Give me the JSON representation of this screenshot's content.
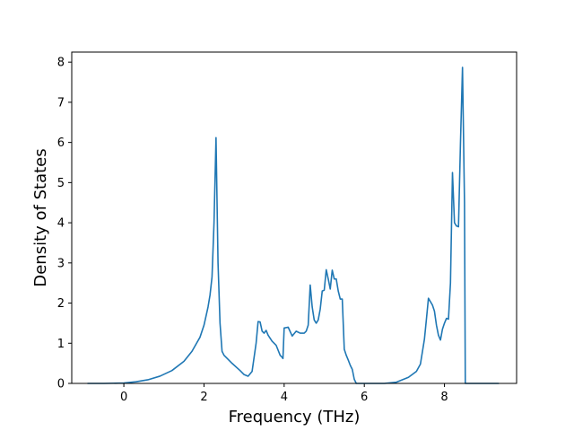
{
  "chart_data": {
    "type": "line",
    "xlabel": "Frequency (THz)",
    "ylabel": "Density of States",
    "xlim": [
      -1.3,
      9.8
    ],
    "ylim": [
      0,
      8.25
    ],
    "x_ticks": [
      0,
      2,
      4,
      6,
      8
    ],
    "y_ticks": [
      0,
      1,
      2,
      3,
      4,
      5,
      6,
      7,
      8
    ],
    "grid": false,
    "line_color": "#1f77b4",
    "series": [
      {
        "x": [
          -0.9,
          -0.5,
          0.0,
          0.3,
          0.6,
          0.9,
          1.2,
          1.5,
          1.7,
          1.9,
          2.0,
          2.1,
          2.15,
          2.2,
          2.25,
          2.3,
          2.35,
          2.4,
          2.45,
          2.5,
          2.7,
          2.9,
          3.0,
          3.1,
          3.2,
          3.3,
          3.35,
          3.4,
          3.45,
          3.5,
          3.55,
          3.6,
          3.7,
          3.8,
          3.9,
          3.95,
          3.97,
          4.0,
          4.1,
          4.2,
          4.3,
          4.4,
          4.5,
          4.55,
          4.6,
          4.65,
          4.7,
          4.75,
          4.8,
          4.85,
          4.9,
          4.95,
          5.0,
          5.05,
          5.1,
          5.15,
          5.2,
          5.25,
          5.3,
          5.35,
          5.4,
          5.45,
          5.5,
          5.55,
          5.6,
          5.65,
          5.7,
          5.75,
          5.8,
          6.0,
          6.5,
          6.8,
          7.1,
          7.3,
          7.4,
          7.5,
          7.55,
          7.6,
          7.7,
          7.75,
          7.8,
          7.85,
          7.9,
          7.95,
          8.0,
          8.05,
          8.1,
          8.15,
          8.2,
          8.25,
          8.3,
          8.35,
          8.4,
          8.45,
          8.5,
          8.52,
          8.6,
          8.9,
          9.35
        ],
        "y": [
          0,
          0,
          0.01,
          0.04,
          0.09,
          0.18,
          0.32,
          0.55,
          0.8,
          1.15,
          1.45,
          1.9,
          2.2,
          2.65,
          4.0,
          6.12,
          3.0,
          1.5,
          0.8,
          0.7,
          0.5,
          0.32,
          0.22,
          0.18,
          0.3,
          1.0,
          1.54,
          1.53,
          1.3,
          1.25,
          1.32,
          1.2,
          1.05,
          0.95,
          0.7,
          0.65,
          0.62,
          1.38,
          1.4,
          1.18,
          1.3,
          1.25,
          1.25,
          1.3,
          1.45,
          2.45,
          1.9,
          1.58,
          1.5,
          1.58,
          1.85,
          2.3,
          2.32,
          2.83,
          2.6,
          2.35,
          2.82,
          2.6,
          2.6,
          2.3,
          2.1,
          2.1,
          0.85,
          0.7,
          0.58,
          0.45,
          0.35,
          0.1,
          0.0,
          0.0,
          0.0,
          0.03,
          0.15,
          0.3,
          0.48,
          1.1,
          1.6,
          2.12,
          1.95,
          1.8,
          1.45,
          1.2,
          1.08,
          1.35,
          1.5,
          1.62,
          1.6,
          2.5,
          5.25,
          4.0,
          3.92,
          3.9,
          6.0,
          7.87,
          4.5,
          0.0,
          0.0,
          0.0,
          0.0
        ]
      }
    ]
  }
}
